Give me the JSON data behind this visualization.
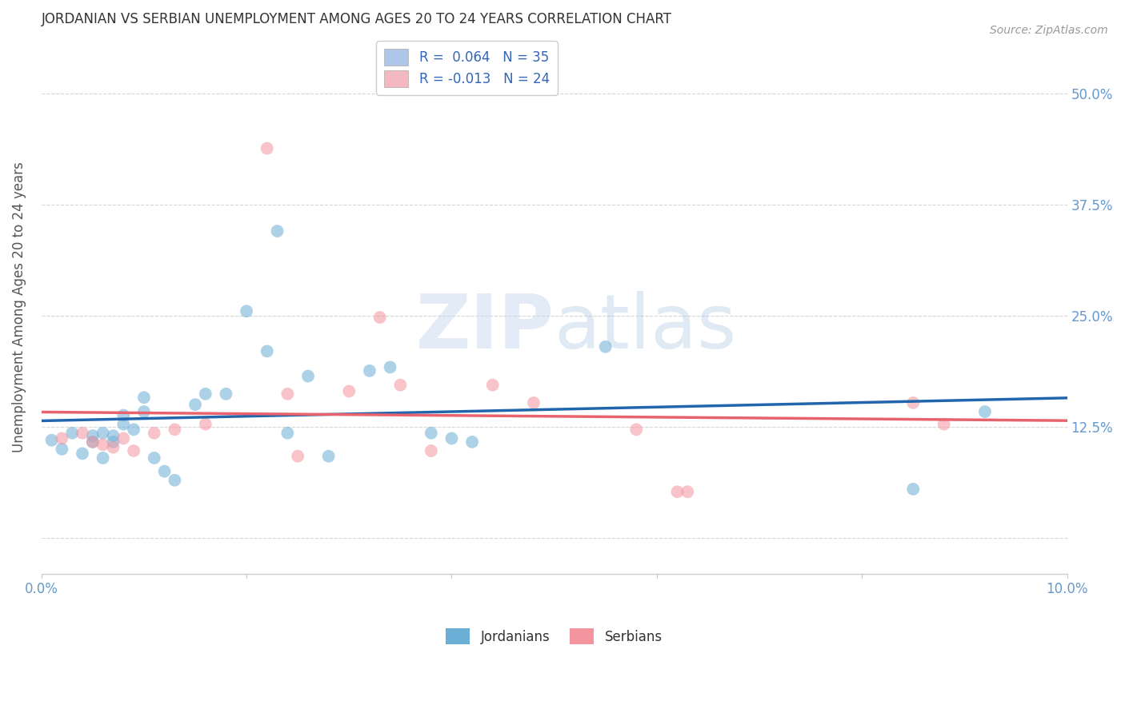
{
  "title": "JORDANIAN VS SERBIAN UNEMPLOYMENT AMONG AGES 20 TO 24 YEARS CORRELATION CHART",
  "source": "Source: ZipAtlas.com",
  "ylabel": "Unemployment Among Ages 20 to 24 years",
  "xlim": [
    0.0,
    0.1
  ],
  "ylim": [
    -0.04,
    0.56
  ],
  "yticks": [
    0.0,
    0.125,
    0.25,
    0.375,
    0.5
  ],
  "ytick_labels": [
    "",
    "12.5%",
    "25.0%",
    "37.5%",
    "50.0%"
  ],
  "xticks": [
    0.0,
    0.02,
    0.04,
    0.06,
    0.08,
    0.1
  ],
  "xtick_labels": [
    "0.0%",
    "",
    "",
    "",
    "",
    "10.0%"
  ],
  "legend_entries": [
    {
      "label": "R =  0.064   N = 35",
      "color": "#aec6e8"
    },
    {
      "label": "R = -0.013   N = 24",
      "color": "#f4b8c1"
    }
  ],
  "jordanian_color": "#6baed6",
  "serbian_color": "#f4949e",
  "trend_jordan_color": "#2166ac",
  "trend_serbia_color": "#e8636d",
  "watermark_zip": "ZIP",
  "watermark_atlas": "atlas",
  "jordanian_x": [
    0.001,
    0.002,
    0.003,
    0.004,
    0.005,
    0.005,
    0.006,
    0.006,
    0.007,
    0.007,
    0.008,
    0.008,
    0.009,
    0.01,
    0.01,
    0.011,
    0.012,
    0.013,
    0.015,
    0.016,
    0.018,
    0.02,
    0.022,
    0.023,
    0.024,
    0.026,
    0.028,
    0.032,
    0.034,
    0.038,
    0.04,
    0.042,
    0.055,
    0.085,
    0.092
  ],
  "jordanian_y": [
    0.11,
    0.1,
    0.118,
    0.095,
    0.108,
    0.115,
    0.09,
    0.118,
    0.115,
    0.108,
    0.128,
    0.138,
    0.122,
    0.142,
    0.158,
    0.09,
    0.075,
    0.065,
    0.15,
    0.162,
    0.162,
    0.255,
    0.21,
    0.345,
    0.118,
    0.182,
    0.092,
    0.188,
    0.192,
    0.118,
    0.112,
    0.108,
    0.215,
    0.055,
    0.142
  ],
  "serbian_x": [
    0.002,
    0.004,
    0.005,
    0.006,
    0.007,
    0.008,
    0.009,
    0.011,
    0.013,
    0.016,
    0.022,
    0.024,
    0.025,
    0.03,
    0.033,
    0.035,
    0.038,
    0.044,
    0.048,
    0.058,
    0.062,
    0.063,
    0.085,
    0.088
  ],
  "serbian_y": [
    0.112,
    0.118,
    0.108,
    0.105,
    0.102,
    0.112,
    0.098,
    0.118,
    0.122,
    0.128,
    0.438,
    0.162,
    0.092,
    0.165,
    0.248,
    0.172,
    0.098,
    0.172,
    0.152,
    0.122,
    0.052,
    0.052,
    0.152,
    0.128
  ],
  "background_color": "#ffffff",
  "grid_color": "#cccccc",
  "title_color": "#333333",
  "axis_label_color": "#555555",
  "tick_label_color": "#6699cc",
  "right_ytick_color": "#6699cc",
  "marker_size": 130,
  "marker_alpha": 0.55,
  "trend_linewidth": 2.5,
  "bottom_legend_labels": [
    "Jordanians",
    "Serbians"
  ]
}
